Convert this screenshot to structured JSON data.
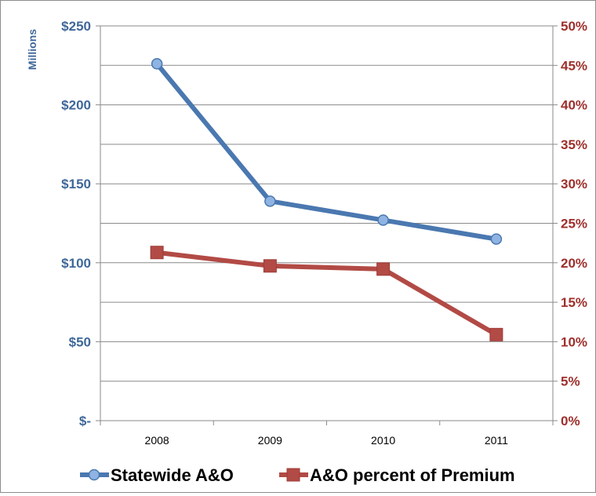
{
  "chart_data": {
    "type": "line",
    "title": "",
    "categories": [
      "2008",
      "2009",
      "2010",
      "2011"
    ],
    "y_left": {
      "label": "Millions",
      "min": 0,
      "max": 250,
      "ticks": [
        0,
        50,
        100,
        150,
        200,
        250
      ],
      "tick_labels": [
        "$-",
        "$50",
        "$100",
        "$150",
        "$200",
        "$250"
      ]
    },
    "y_right": {
      "min": 0,
      "max": 50,
      "ticks": [
        0,
        5,
        10,
        15,
        20,
        25,
        30,
        35,
        40,
        45,
        50
      ],
      "tick_labels": [
        "0%",
        "5%",
        "10%",
        "15%",
        "20%",
        "25%",
        "30%",
        "35%",
        "40%",
        "45%",
        "50%"
      ]
    },
    "series": [
      {
        "name": "Statewide A&O",
        "axis": "left",
        "marker": "circle",
        "color": "#4a78b0",
        "values": [
          226,
          139,
          127,
          115
        ]
      },
      {
        "name": "A&O percent of Premium",
        "axis": "right",
        "marker": "square",
        "color": "#b24a45",
        "values": [
          21.3,
          19.6,
          19.2,
          10.9
        ]
      }
    ],
    "grid": true,
    "legend_position": "bottom"
  }
}
